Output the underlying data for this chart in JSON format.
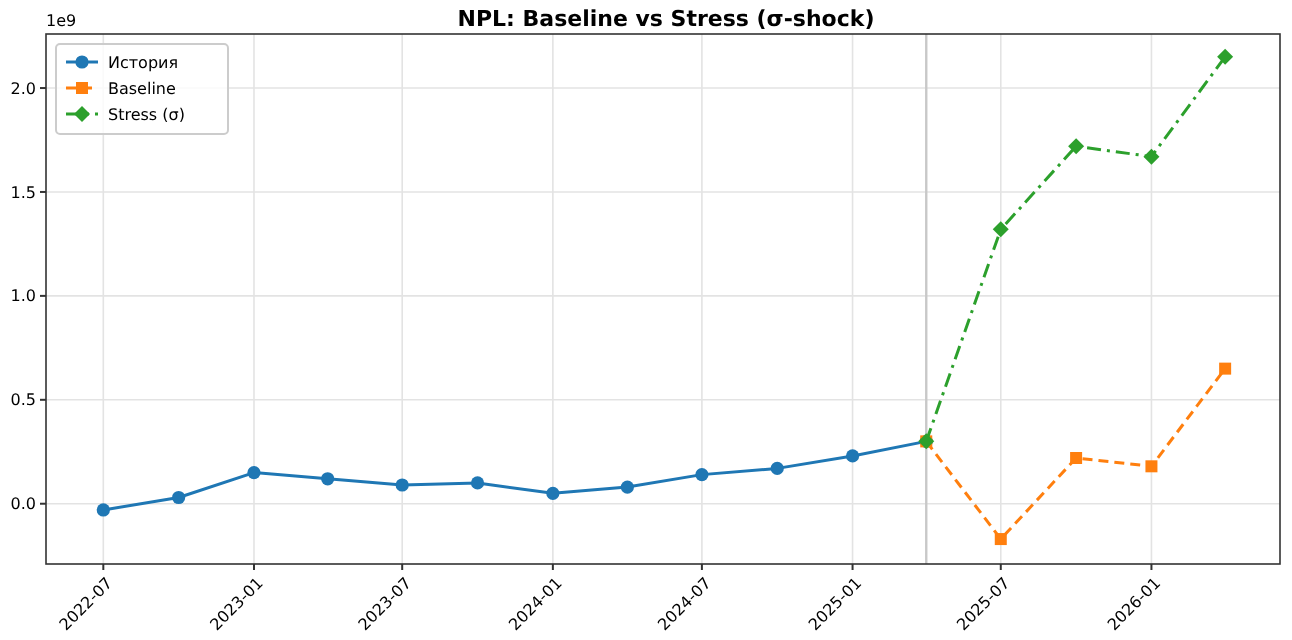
{
  "chart_data": {
    "type": "line",
    "title": "NPL: Baseline vs Stress (σ-shock)",
    "annotations": [
      "1e9"
    ],
    "series": [
      {
        "name": "История",
        "color": "#1f77b4",
        "marker": "circle",
        "line_style": "solid",
        "x": [
          "2022-07-01",
          "2022-10-01",
          "2023-01-01",
          "2023-04-01",
          "2023-07-01",
          "2023-10-01",
          "2024-01-01",
          "2024-04-01",
          "2024-07-01",
          "2024-10-01",
          "2025-01-01",
          "2025-04-01"
        ],
        "values": [
          -0.03,
          0.03,
          0.15,
          0.12,
          0.09,
          0.1,
          0.05,
          0.08,
          0.14,
          0.17,
          0.23,
          0.3
        ]
      },
      {
        "name": "Baseline",
        "color": "#ff7f0e",
        "marker": "square",
        "line_style": "dashed",
        "x": [
          "2025-04-01",
          "2025-07-01",
          "2025-10-01",
          "2026-01-01",
          "2026-04-01"
        ],
        "values": [
          0.3,
          -0.17,
          0.22,
          0.18,
          0.65
        ]
      },
      {
        "name": "Stress (σ)",
        "color": "#2ca02c",
        "marker": "diamond",
        "line_style": "dashdot",
        "x": [
          "2025-04-01",
          "2025-07-01",
          "2025-10-01",
          "2026-01-01",
          "2026-04-01"
        ],
        "values": [
          0.3,
          1.32,
          1.72,
          1.67,
          2.15
        ]
      }
    ],
    "xlim": [
      "2022-04-22",
      "2026-06-07"
    ],
    "xticks": [
      {
        "value": "2022-07-01",
        "label": "2022-07"
      },
      {
        "value": "2023-01-01",
        "label": "2023-01"
      },
      {
        "value": "2023-07-01",
        "label": "2023-07"
      },
      {
        "value": "2024-01-01",
        "label": "2024-01"
      },
      {
        "value": "2024-07-01",
        "label": "2024-07"
      },
      {
        "value": "2025-01-01",
        "label": "2025-01"
      },
      {
        "value": "2025-07-01",
        "label": "2025-07"
      },
      {
        "value": "2026-01-01",
        "label": "2026-01"
      }
    ],
    "ylim": [
      -0.29,
      2.26
    ],
    "yticks": [
      {
        "value": 0,
        "label": "0.0"
      },
      0.5,
      {
        "value": 1,
        "label": "1.0"
      },
      1.5,
      {
        "value": 2,
        "label": "2.0"
      }
    ],
    "ref_lines": [
      {
        "axis": "x",
        "value": "2025-04-01",
        "color": "#c8c8c8",
        "line_style": "solid"
      }
    ],
    "grid": true,
    "legend": "top left"
  }
}
